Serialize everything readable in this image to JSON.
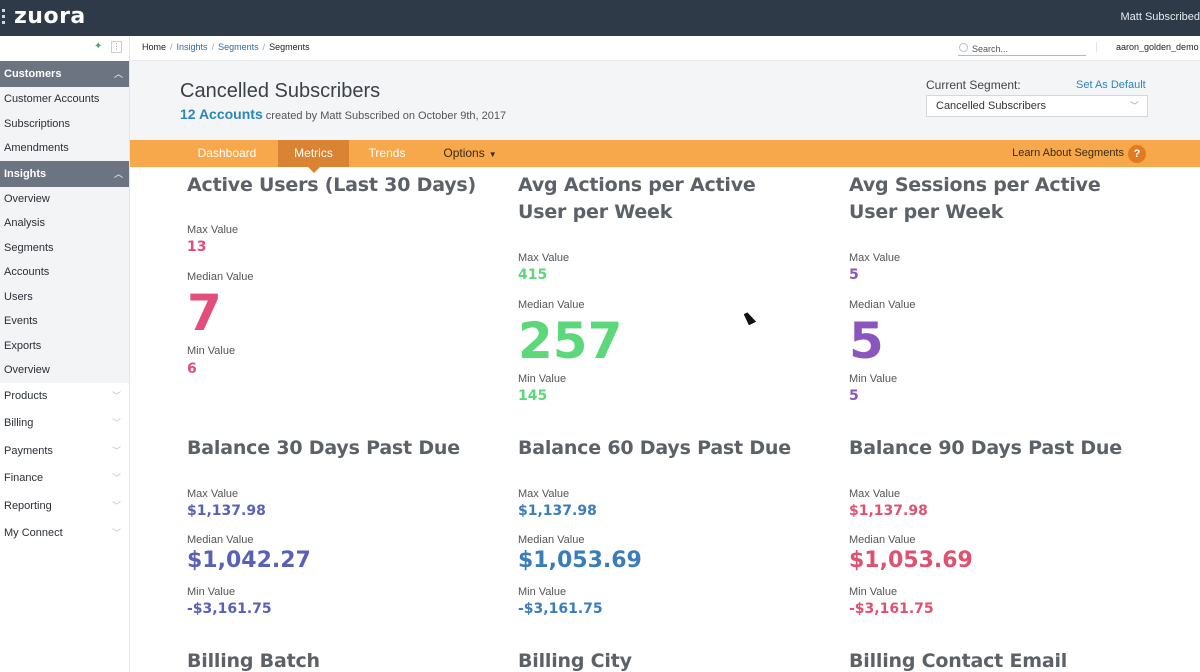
{
  "topbar": {
    "logo": "zuora",
    "user": "Matt Subscribed"
  },
  "sidebar": {
    "groups": [
      {
        "label": "Customers",
        "items": [
          "Customer Accounts",
          "Subscriptions",
          "Amendments"
        ]
      },
      {
        "label": "Insights",
        "items": [
          "Overview",
          "Analysis",
          "Segments",
          "Accounts",
          "Users",
          "Events",
          "Exports",
          "Overview"
        ]
      }
    ],
    "top_items": [
      "Products",
      "Billing",
      "Payments",
      "Finance",
      "Reporting",
      "My Connect"
    ]
  },
  "breadcrumb": {
    "items": [
      "Home",
      "Insights",
      "Segments",
      "Segments"
    ]
  },
  "search": {
    "placeholder": "Search..."
  },
  "account_name": "aaron_golden_demo",
  "header": {
    "title": "Cancelled Subscribers",
    "count": "12 Accounts",
    "created": "created by Matt Subscribed on October 9th, 2017",
    "segment_label": "Current Segment:",
    "set_default": "Set As Default",
    "segment_value": "Cancelled Subscribers"
  },
  "tabs": {
    "dashboard": "Dashboard",
    "metrics": "Metrics",
    "trends": "Trends",
    "options": "Options",
    "learn": "Learn About Segments",
    "help": "?"
  },
  "labels": {
    "max": "Max Value",
    "median": "Median Value",
    "min": "Min Value"
  },
  "metrics": [
    {
      "title_1": "Active Users (Last 30 Days)",
      "title_2": "",
      "max": "13",
      "median": "7",
      "min": "6",
      "color": "#e34d7a"
    },
    {
      "title_1": "Avg Actions per Active",
      "title_2": "User per Week",
      "max": "415",
      "median": "257",
      "min": "145",
      "color": "#5cd87a"
    },
    {
      "title_1": "Avg Sessions per Active",
      "title_2": "User per Week",
      "max": "5",
      "median": "5",
      "min": "5",
      "color": "#8a56bd"
    },
    {
      "title_1": "Balance 30 Days Past Due",
      "title_2": "",
      "max": "$1,137.98",
      "median": "$1,042.27",
      "min": "-$3,161.75",
      "color": "#5961b7"
    },
    {
      "title_1": "Balance 60 Days Past Due",
      "title_2": "",
      "max": "$1,137.98",
      "median": "$1,053.69",
      "min": "-$3,161.75",
      "color": "#3a7dbb"
    },
    {
      "title_1": "Balance 90 Days Past Due",
      "title_2": "",
      "max": "$1,137.98",
      "median": "$1,053.69",
      "min": "-$3,161.75",
      "color": "#e0506f"
    }
  ],
  "bottom_titles": [
    "Billing Batch",
    "Billing City",
    "Billing Contact Email"
  ]
}
